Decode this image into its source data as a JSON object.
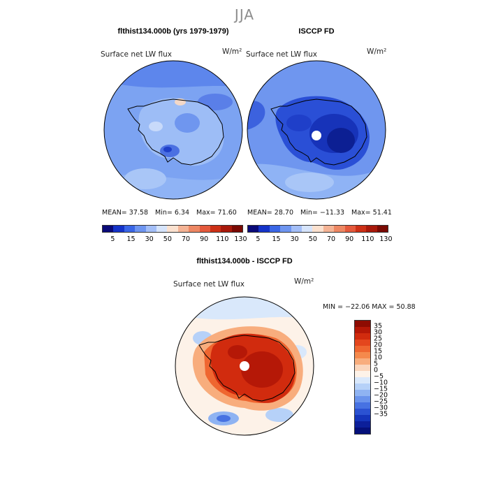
{
  "figure": {
    "season": "JJA"
  },
  "panels": [
    {
      "title": "flthist134.000b (yrs 1979-1979)",
      "variable": "Surface net LW flux",
      "units": "W/m²",
      "mean_label": "MEAN=",
      "mean": "37.58",
      "min_label": "Min=",
      "min": "6.34",
      "max_label": "Max=",
      "max": "71.60"
    },
    {
      "title": "ISCCP FD",
      "variable": "Surface net LW flux",
      "units": "W/m²",
      "mean_label": "MEAN=",
      "mean": "28.70",
      "min_label": "Min=",
      "min": "−11.33",
      "max_label": "Max=",
      "max": "51.41"
    }
  ],
  "diff_panel": {
    "title": "flthist134.000b - ISCCP FD",
    "variable": "Surface net LW flux",
    "units": "W/m²",
    "minmax": "MIN = −22.06  MAX =  50.88"
  },
  "colorbar_abs": {
    "labels": [
      "5",
      "15",
      "30",
      "50",
      "70",
      "90",
      "110",
      "130"
    ],
    "colors": [
      "#0a0a78",
      "#1433c8",
      "#3a66e6",
      "#6e95f0",
      "#a3bef7",
      "#d6e4fb",
      "#fbe1cf",
      "#f4b395",
      "#ed8763",
      "#e4593c",
      "#cc3016",
      "#a8190b",
      "#7a0a04"
    ]
  },
  "colorbar_diff": {
    "labels": [
      "35",
      "30",
      "25",
      "20",
      "15",
      "10",
      "5",
      "0",
      "−5",
      "−10",
      "−15",
      "−20",
      "−25",
      "−30",
      "−35"
    ],
    "colors": [
      "#8e0c02",
      "#b51807",
      "#d12b0e",
      "#e4461d",
      "#ef6630",
      "#f5894c",
      "#f8ad7d",
      "#fad6bd",
      "#fdf2e8",
      "#d9e8fb",
      "#b6d1f8",
      "#8fb3f2",
      "#6a93ec",
      "#4772e2",
      "#2b52d2",
      "#1535bb",
      "#0c1f9a",
      "#05107a"
    ]
  }
}
